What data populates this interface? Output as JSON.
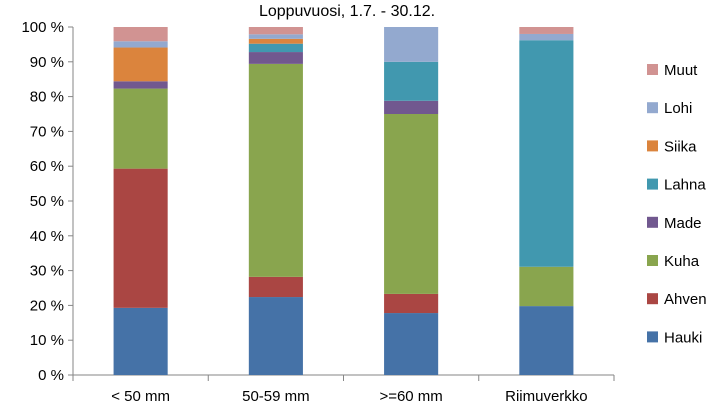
{
  "chart_data": {
    "type": "bar",
    "stacked": "percent",
    "title": "Loppuvuosi, 1.7. - 30.12.",
    "xlabel": "",
    "ylabel": "",
    "ylim": [
      0,
      100
    ],
    "yticks": [
      "0 %",
      "10 %",
      "20 %",
      "30 %",
      "40 %",
      "50 %",
      "60 %",
      "70 %",
      "80 %",
      "90 %",
      "100 %"
    ],
    "categories": [
      "< 50 mm",
      "50-59 mm",
      ">=60 mm",
      "Riimuverkko"
    ],
    "legend_position": "right",
    "grid": false,
    "series": [
      {
        "name": "Hauki",
        "color": "#4572A7",
        "values": [
          19.3,
          22.4,
          17.8,
          19.8
        ]
      },
      {
        "name": "Ahven",
        "color": "#AA4643",
        "values": [
          40.0,
          5.8,
          5.5,
          0.0
        ]
      },
      {
        "name": "Kuha",
        "color": "#89A54E",
        "values": [
          23.0,
          61.2,
          51.7,
          11.3
        ]
      },
      {
        "name": "Made",
        "color": "#71588F",
        "values": [
          2.1,
          3.4,
          3.8,
          0.0
        ]
      },
      {
        "name": "Lahna",
        "color": "#4198AF",
        "values": [
          0.0,
          2.4,
          11.2,
          65.1
        ]
      },
      {
        "name": "Siika",
        "color": "#DB843D",
        "values": [
          9.7,
          1.4,
          0.0,
          0.0
        ]
      },
      {
        "name": "Lohi",
        "color": "#93A9CF",
        "values": [
          1.8,
          1.3,
          10.0,
          1.8
        ]
      },
      {
        "name": "Muut",
        "color": "#D19392",
        "values": [
          4.1,
          2.1,
          0.0,
          2.0
        ]
      }
    ]
  }
}
